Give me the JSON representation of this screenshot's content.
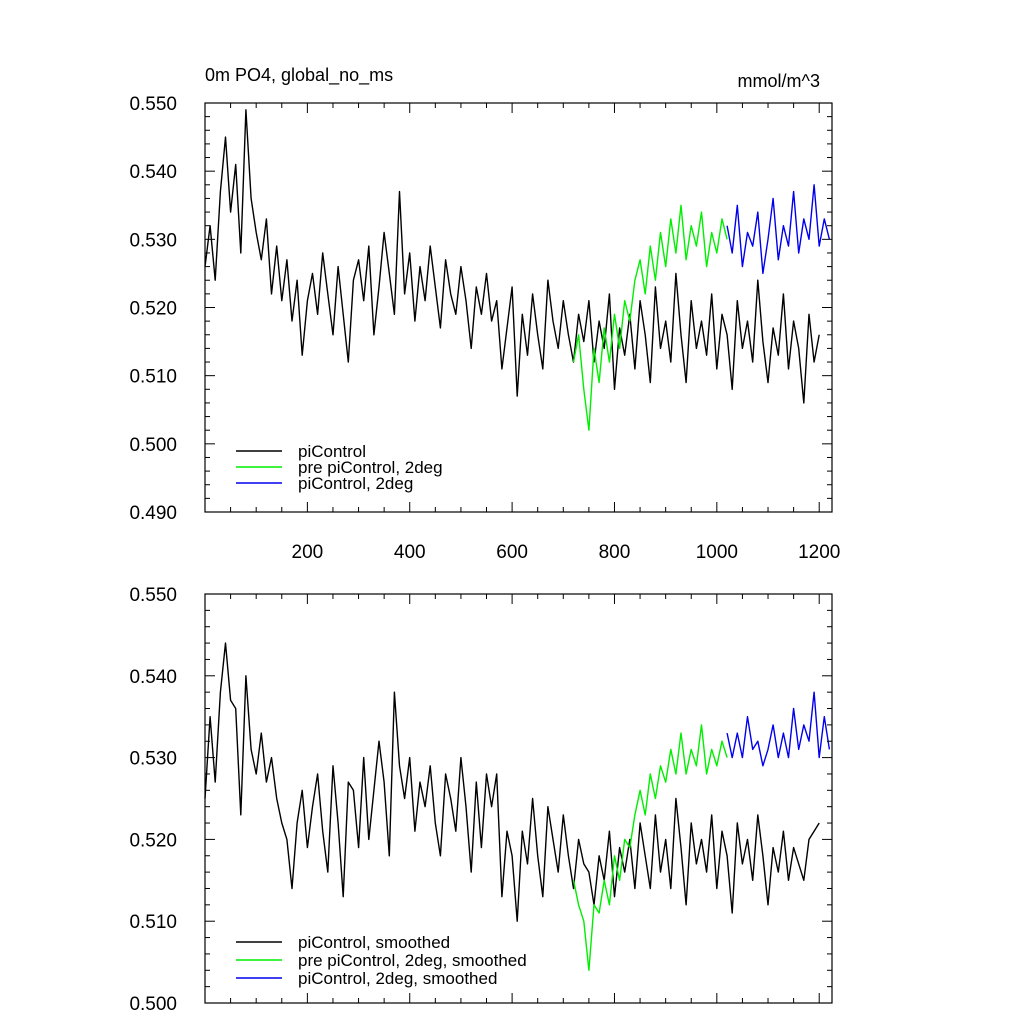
{
  "colors": {
    "black": "#000000",
    "green": "#00ee00",
    "blue": "#0000ee"
  },
  "chart_data": [
    {
      "type": "line",
      "title": "0m PO4, global_no_ms",
      "units": "mmol/m^3",
      "xlabel": "",
      "ylabel": "",
      "xlim": [
        0,
        1225
      ],
      "ylim": [
        0.49,
        0.55
      ],
      "x_ticks": [
        200,
        400,
        600,
        800,
        1000,
        1200
      ],
      "x_tick_labels": [
        "200",
        "400",
        "600",
        "800",
        "1000",
        "1200"
      ],
      "y_ticks": [
        0.49,
        0.5,
        0.51,
        0.52,
        0.53,
        0.54,
        0.55
      ],
      "y_tick_labels": [
        "0.490",
        "0.500",
        "0.510",
        "0.520",
        "0.530",
        "0.540",
        "0.550"
      ],
      "legend": [
        "piControl",
        "pre piControl, 2deg",
        "piControl, 2deg"
      ],
      "legend_position": "bottom-left",
      "series": [
        {
          "name": "piControl",
          "color": "#000000",
          "x": [
            0,
            10,
            20,
            30,
            40,
            50,
            60,
            70,
            80,
            90,
            100,
            110,
            120,
            130,
            140,
            150,
            160,
            170,
            180,
            190,
            200,
            210,
            220,
            230,
            240,
            250,
            260,
            270,
            280,
            290,
            300,
            310,
            320,
            330,
            340,
            350,
            360,
            370,
            380,
            390,
            400,
            410,
            420,
            430,
            440,
            450,
            460,
            470,
            480,
            490,
            500,
            510,
            520,
            530,
            540,
            550,
            560,
            570,
            580,
            590,
            600,
            610,
            620,
            630,
            640,
            650,
            660,
            670,
            680,
            690,
            700,
            710,
            720,
            730,
            740,
            750,
            760,
            770,
            780,
            790,
            800,
            810,
            820,
            830,
            840,
            850,
            860,
            870,
            880,
            890,
            900,
            910,
            920,
            930,
            940,
            950,
            960,
            970,
            980,
            990,
            1000,
            1010,
            1020,
            1030,
            1040,
            1050,
            1060,
            1070,
            1080,
            1090,
            1100,
            1110,
            1120,
            1130,
            1140,
            1150,
            1160,
            1170,
            1180,
            1190,
            1200
          ],
          "values": [
            0.526,
            0.532,
            0.524,
            0.537,
            0.545,
            0.534,
            0.541,
            0.528,
            0.549,
            0.536,
            0.531,
            0.527,
            0.533,
            0.522,
            0.529,
            0.521,
            0.527,
            0.518,
            0.524,
            0.513,
            0.521,
            0.525,
            0.519,
            0.528,
            0.522,
            0.516,
            0.526,
            0.519,
            0.512,
            0.524,
            0.527,
            0.521,
            0.529,
            0.516,
            0.523,
            0.531,
            0.525,
            0.519,
            0.537,
            0.522,
            0.528,
            0.518,
            0.526,
            0.521,
            0.529,
            0.523,
            0.517,
            0.527,
            0.522,
            0.519,
            0.526,
            0.521,
            0.514,
            0.523,
            0.519,
            0.525,
            0.518,
            0.521,
            0.511,
            0.517,
            0.523,
            0.507,
            0.519,
            0.513,
            0.522,
            0.516,
            0.511,
            0.524,
            0.518,
            0.514,
            0.521,
            0.516,
            0.512,
            0.519,
            0.515,
            0.521,
            0.512,
            0.518,
            0.514,
            0.522,
            0.508,
            0.517,
            0.513,
            0.519,
            0.511,
            0.521,
            0.516,
            0.509,
            0.523,
            0.514,
            0.518,
            0.512,
            0.525,
            0.516,
            0.509,
            0.521,
            0.514,
            0.518,
            0.513,
            0.522,
            0.511,
            0.519,
            0.516,
            0.508,
            0.521,
            0.514,
            0.518,
            0.512,
            0.524,
            0.515,
            0.509,
            0.517,
            0.513,
            0.522,
            0.511,
            0.518,
            0.514,
            0.506,
            0.519,
            0.512,
            0.516
          ]
        },
        {
          "name": "pre piControl, 2deg",
          "color": "#00ee00",
          "x": [
            720,
            730,
            740,
            750,
            760,
            770,
            780,
            790,
            800,
            810,
            820,
            830,
            840,
            850,
            860,
            870,
            880,
            890,
            900,
            910,
            920,
            930,
            940,
            950,
            960,
            970,
            980,
            990,
            1000,
            1010,
            1020
          ],
          "values": [
            0.512,
            0.516,
            0.508,
            0.502,
            0.514,
            0.509,
            0.517,
            0.512,
            0.519,
            0.514,
            0.521,
            0.518,
            0.524,
            0.527,
            0.522,
            0.529,
            0.524,
            0.531,
            0.526,
            0.533,
            0.528,
            0.535,
            0.527,
            0.532,
            0.529,
            0.534,
            0.526,
            0.531,
            0.528,
            0.533,
            0.53
          ]
        },
        {
          "name": "piControl, 2deg",
          "color": "#0000ee",
          "x": [
            1020,
            1030,
            1040,
            1050,
            1060,
            1070,
            1080,
            1090,
            1100,
            1110,
            1120,
            1130,
            1140,
            1150,
            1160,
            1170,
            1180,
            1190,
            1200,
            1210,
            1220
          ],
          "values": [
            0.532,
            0.528,
            0.535,
            0.526,
            0.531,
            0.529,
            0.534,
            0.525,
            0.53,
            0.536,
            0.527,
            0.532,
            0.529,
            0.537,
            0.528,
            0.533,
            0.53,
            0.538,
            0.529,
            0.533,
            0.53
          ]
        }
      ]
    },
    {
      "type": "line",
      "title": "",
      "xlabel": "",
      "ylabel": "",
      "xlim": [
        0,
        1225
      ],
      "ylim": [
        0.5,
        0.55
      ],
      "y_ticks": [
        0.5,
        0.51,
        0.52,
        0.53,
        0.54,
        0.55
      ],
      "y_tick_labels": [
        "0.500",
        "0.510",
        "0.520",
        "0.530",
        "0.540",
        "0.550"
      ],
      "legend": [
        "piControl, smoothed",
        "pre piControl, 2deg, smoothed",
        "piControl, 2deg, smoothed"
      ],
      "legend_position": "bottom-left",
      "series": [
        {
          "name": "piControl, smoothed",
          "color": "#000000",
          "x": [
            0,
            10,
            20,
            30,
            40,
            50,
            60,
            70,
            80,
            90,
            100,
            110,
            120,
            130,
            140,
            150,
            160,
            170,
            180,
            190,
            200,
            210,
            220,
            230,
            240,
            250,
            260,
            270,
            280,
            290,
            300,
            310,
            320,
            330,
            340,
            350,
            360,
            370,
            380,
            390,
            400,
            410,
            420,
            430,
            440,
            450,
            460,
            470,
            480,
            490,
            500,
            510,
            520,
            530,
            540,
            550,
            560,
            570,
            580,
            590,
            600,
            610,
            620,
            630,
            640,
            650,
            660,
            670,
            680,
            690,
            700,
            710,
            720,
            730,
            740,
            750,
            760,
            770,
            780,
            790,
            800,
            810,
            820,
            830,
            840,
            850,
            860,
            870,
            880,
            890,
            900,
            910,
            920,
            930,
            940,
            950,
            960,
            970,
            980,
            990,
            1000,
            1010,
            1020,
            1030,
            1040,
            1050,
            1060,
            1070,
            1080,
            1090,
            1100,
            1110,
            1120,
            1130,
            1140,
            1150,
            1160,
            1170,
            1180,
            1190,
            1200
          ],
          "values": [
            0.525,
            0.535,
            0.527,
            0.538,
            0.544,
            0.537,
            0.536,
            0.523,
            0.54,
            0.531,
            0.528,
            0.533,
            0.527,
            0.53,
            0.525,
            0.522,
            0.52,
            0.514,
            0.522,
            0.526,
            0.519,
            0.524,
            0.528,
            0.521,
            0.516,
            0.529,
            0.522,
            0.513,
            0.527,
            0.526,
            0.519,
            0.53,
            0.52,
            0.526,
            0.532,
            0.527,
            0.518,
            0.538,
            0.529,
            0.525,
            0.53,
            0.521,
            0.527,
            0.524,
            0.529,
            0.522,
            0.518,
            0.528,
            0.525,
            0.521,
            0.53,
            0.524,
            0.516,
            0.527,
            0.519,
            0.528,
            0.524,
            0.528,
            0.513,
            0.521,
            0.518,
            0.51,
            0.521,
            0.517,
            0.525,
            0.518,
            0.513,
            0.524,
            0.52,
            0.516,
            0.523,
            0.518,
            0.514,
            0.52,
            0.517,
            0.516,
            0.512,
            0.518,
            0.515,
            0.521,
            0.513,
            0.519,
            0.516,
            0.52,
            0.514,
            0.522,
            0.518,
            0.514,
            0.523,
            0.516,
            0.52,
            0.514,
            0.525,
            0.519,
            0.512,
            0.522,
            0.517,
            0.52,
            0.516,
            0.523,
            0.514,
            0.521,
            0.518,
            0.511,
            0.522,
            0.517,
            0.52,
            0.515,
            0.523,
            0.518,
            0.512,
            0.519,
            0.516,
            0.521,
            0.515,
            0.519,
            0.517,
            0.515,
            0.52,
            0.521,
            0.522
          ]
        },
        {
          "name": "pre piControl, 2deg, smoothed",
          "color": "#00ee00",
          "x": [
            720,
            730,
            740,
            750,
            760,
            770,
            780,
            790,
            800,
            810,
            820,
            830,
            840,
            850,
            860,
            870,
            880,
            890,
            900,
            910,
            920,
            930,
            940,
            950,
            960,
            970,
            980,
            990,
            1000,
            1010,
            1020
          ],
          "values": [
            0.515,
            0.512,
            0.51,
            0.504,
            0.512,
            0.511,
            0.515,
            0.512,
            0.518,
            0.515,
            0.52,
            0.519,
            0.523,
            0.526,
            0.523,
            0.528,
            0.525,
            0.529,
            0.527,
            0.531,
            0.528,
            0.533,
            0.528,
            0.531,
            0.529,
            0.534,
            0.528,
            0.531,
            0.529,
            0.532,
            0.53
          ]
        },
        {
          "name": "piControl, 2deg, smoothed",
          "color": "#0000ee",
          "x": [
            1020,
            1030,
            1040,
            1050,
            1060,
            1070,
            1080,
            1090,
            1100,
            1110,
            1120,
            1130,
            1140,
            1150,
            1160,
            1170,
            1180,
            1190,
            1200,
            1210,
            1220
          ],
          "values": [
            0.533,
            0.53,
            0.533,
            0.53,
            0.535,
            0.531,
            0.532,
            0.529,
            0.531,
            0.534,
            0.53,
            0.533,
            0.53,
            0.536,
            0.531,
            0.534,
            0.532,
            0.538,
            0.53,
            0.535,
            0.531
          ]
        }
      ]
    }
  ]
}
